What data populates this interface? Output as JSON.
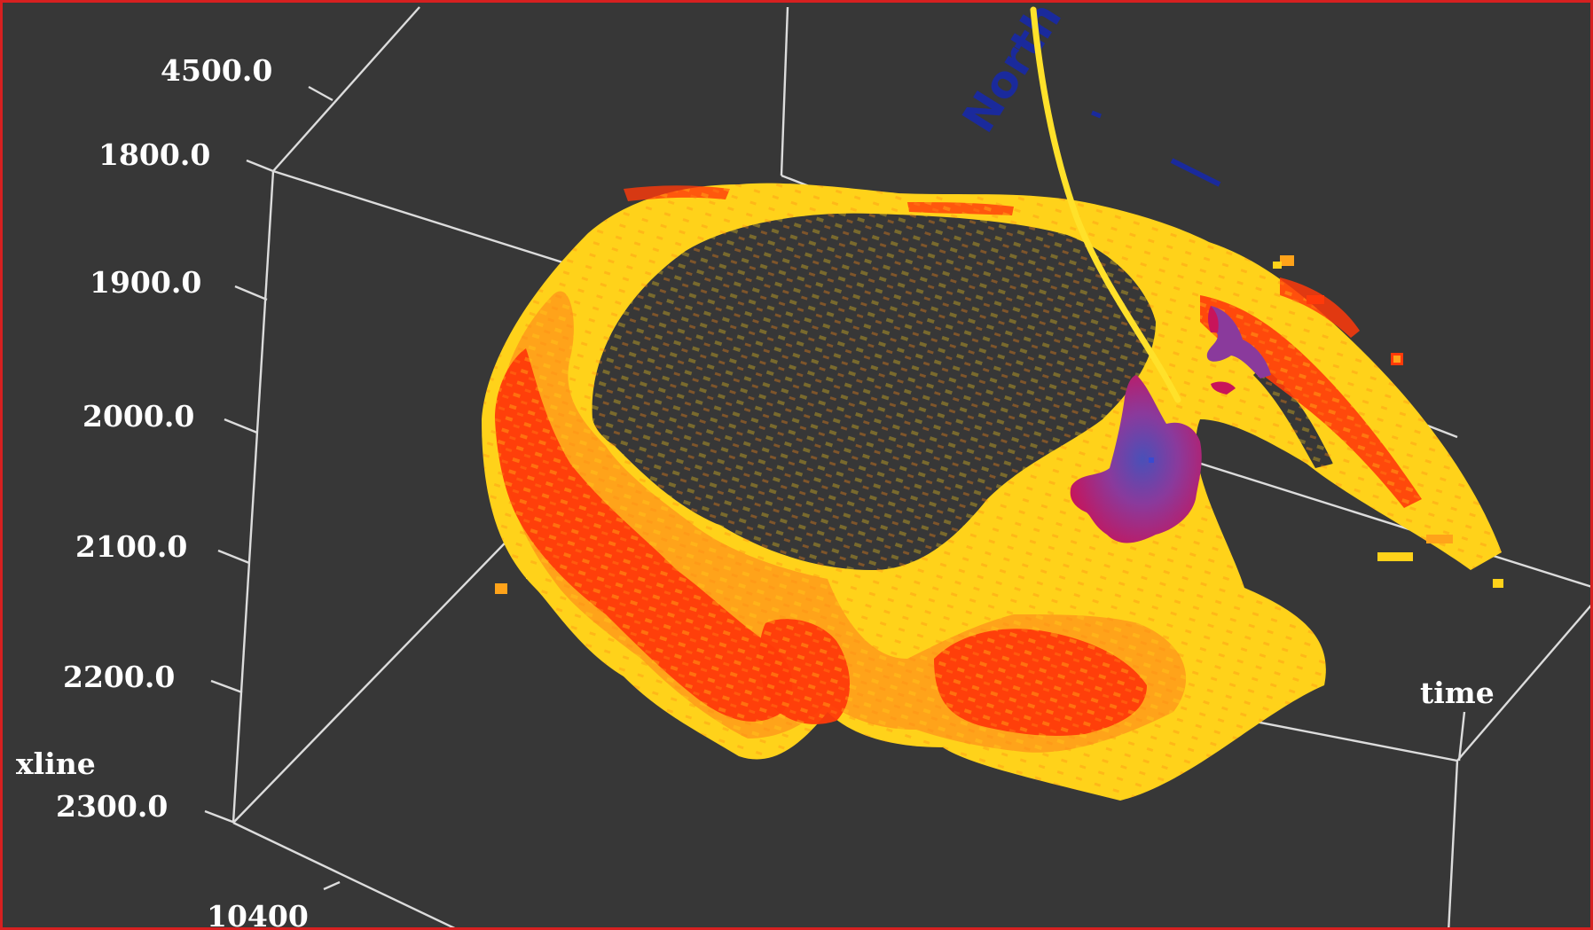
{
  "viewer": {
    "background": "#373737",
    "border_color": "#d62020",
    "axis_color": "#dcdcdc",
    "body_colors": [
      "#ffd21a",
      "#ffa31a",
      "#ff3a0a",
      "#e8102a"
    ],
    "anomaly_colors": [
      "#c8145a",
      "#8a3a9c",
      "#5a50b4"
    ],
    "well_color": "#ffe12a",
    "north_color": "#1a2a9c"
  },
  "axes": {
    "inline_top_tick": "4500.0",
    "time_ticks": [
      "1800.0",
      "1900.0",
      "2000.0",
      "2100.0",
      "2200.0",
      "2300.0"
    ],
    "xline_label": "xline",
    "xline_tick": "10400",
    "time_label": "time"
  },
  "annotation": {
    "north": "North"
  }
}
